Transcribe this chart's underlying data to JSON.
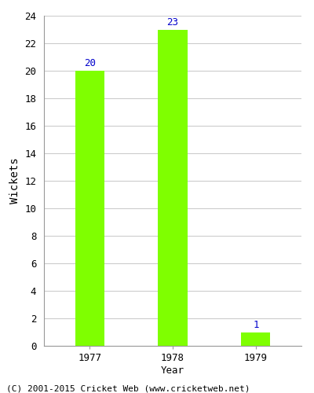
{
  "categories": [
    "1977",
    "1978",
    "1979"
  ],
  "values": [
    20,
    23,
    1
  ],
  "bar_color": "#7FFF00",
  "bar_edge_color": "#7FFF00",
  "ylabel": "Wickets",
  "xlabel": "Year",
  "ylim": [
    0,
    24
  ],
  "yticks": [
    0,
    2,
    4,
    6,
    8,
    10,
    12,
    14,
    16,
    18,
    20,
    22,
    24
  ],
  "label_color": "#0000CC",
  "label_fontsize": 9,
  "grid_color": "#cccccc",
  "background_color": "#ffffff",
  "footer_text": "(C) 2001-2015 Cricket Web (www.cricketweb.net)",
  "footer_fontsize": 8,
  "bar_width": 0.35
}
